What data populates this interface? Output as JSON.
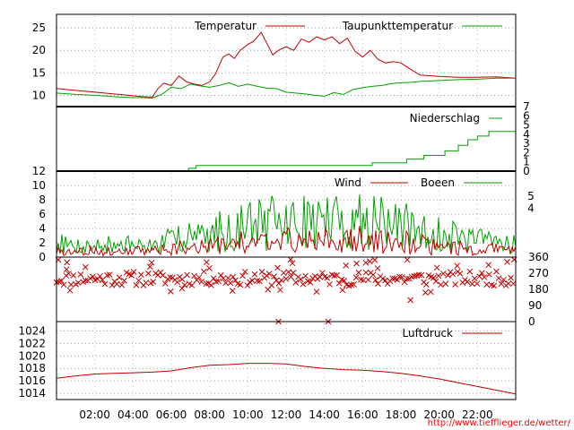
{
  "chart_data": [
    {
      "type": "line",
      "panel": "temperature",
      "x_range_hours": [
        0,
        24
      ],
      "ylim": [
        7.5,
        28
      ],
      "yticks": [
        10,
        15,
        20,
        25
      ],
      "legend_position": "top",
      "series": [
        {
          "name": "Temperatur",
          "color": "#c00000",
          "x": [
            0,
            1,
            2,
            3,
            4,
            4.5,
            5,
            5.3,
            5.6,
            6.0,
            6.4,
            6.8,
            7.2,
            7.6,
            8.0,
            8.3,
            8.7,
            9.0,
            9.3,
            9.6,
            10.0,
            10.3,
            10.7,
            11.0,
            11.3,
            11.6,
            12.0,
            12.4,
            12.8,
            13.2,
            13.6,
            14.0,
            14.4,
            14.8,
            15.2,
            15.6,
            16.0,
            16.4,
            16.8,
            17.2,
            17.6,
            18.0,
            18.5,
            19.0,
            20.0,
            21.0,
            22.0,
            23.0,
            24.0
          ],
          "y": [
            11.5,
            11.1,
            10.7,
            10.3,
            9.9,
            9.7,
            9.6,
            11.5,
            12.7,
            12.2,
            14.3,
            13.0,
            12.5,
            12.2,
            13.0,
            14.7,
            18.5,
            19.2,
            18.2,
            20.0,
            21.3,
            22.0,
            24.0,
            21.5,
            19.0,
            20.0,
            20.8,
            20.0,
            22.5,
            21.8,
            23.0,
            22.3,
            23.0,
            21.5,
            22.7,
            19.8,
            18.5,
            20.0,
            18.0,
            17.2,
            17.5,
            17.2,
            15.8,
            14.5,
            14.2,
            14.0,
            14.0,
            14.1,
            13.8
          ]
        },
        {
          "name": "Taupunkttemperatur",
          "color": "#00a000",
          "x": [
            0,
            1,
            2,
            3,
            4,
            4.5,
            5,
            5.5,
            6.0,
            6.5,
            7.0,
            7.5,
            8.0,
            8.5,
            9.0,
            9.5,
            10.0,
            10.5,
            11.0,
            11.5,
            12.0,
            12.5,
            13.0,
            13.5,
            14.0,
            14.5,
            15.0,
            15.5,
            16.0,
            16.5,
            17.0,
            17.5,
            18.0,
            18.5,
            19.0,
            20.0,
            21.0,
            22.0,
            23.0,
            24.0
          ],
          "y": [
            10.5,
            10.2,
            10.0,
            9.7,
            9.5,
            9.5,
            9.4,
            10.2,
            11.8,
            11.5,
            12.5,
            12.1,
            11.8,
            12.2,
            12.8,
            12.0,
            12.5,
            12.0,
            11.6,
            11.5,
            10.7,
            10.5,
            10.3,
            10.0,
            9.8,
            10.6,
            10.2,
            11.3,
            11.7,
            12.0,
            12.2,
            12.6,
            12.8,
            12.9,
            13.1,
            13.3,
            13.5,
            13.6,
            13.8,
            13.8
          ]
        }
      ]
    },
    {
      "type": "line",
      "panel": "precipitation",
      "x_range_hours": [
        0,
        24
      ],
      "ylim": [
        0,
        7
      ],
      "yticks": [
        0,
        1,
        2,
        3,
        4,
        5,
        6,
        7
      ],
      "y_axis_side": "right",
      "legend_position": "top",
      "series": [
        {
          "name": "Niederschlag",
          "color": "#00a000",
          "x": [
            0,
            6.9,
            6.9,
            7.3,
            7.3,
            16.5,
            16.5,
            18.3,
            18.3,
            19.2,
            19.2,
            20.3,
            20.3,
            21.0,
            21.0,
            21.5,
            21.5,
            22.0,
            22.0,
            22.6,
            22.6,
            24.0
          ],
          "y": [
            0,
            0,
            0.3,
            0.3,
            0.6,
            0.6,
            0.9,
            0.9,
            1.3,
            1.3,
            1.7,
            1.7,
            2.2,
            2.2,
            2.8,
            2.8,
            3.4,
            3.4,
            3.8,
            3.8,
            4.3,
            4.3
          ]
        }
      ]
    },
    {
      "type": "line",
      "panel": "wind",
      "x_range_hours": [
        0,
        24
      ],
      "ylim": [
        0,
        12
      ],
      "yticks": [
        0,
        2,
        4,
        6,
        8,
        10,
        12
      ],
      "right_labels": [
        "4",
        "5"
      ],
      "legend_position": "top",
      "series": [
        {
          "name": "Wind",
          "color": "#c00000",
          "envelope_x": [
            0,
            3,
            5,
            6,
            7,
            8,
            9,
            10,
            11,
            12,
            13,
            14,
            15,
            16,
            17,
            18,
            19,
            20,
            21,
            22,
            23,
            24
          ],
          "envelope_y": [
            1.1,
            1.0,
            1.0,
            1.4,
            1.7,
            1.9,
            2.2,
            2.6,
            3.0,
            3.1,
            3.3,
            3.2,
            3.0,
            3.0,
            2.9,
            2.6,
            2.2,
            1.8,
            1.6,
            1.5,
            1.4,
            1.4
          ]
        },
        {
          "name": "Boeen",
          "color": "#00a000",
          "envelope_x": [
            0,
            3,
            5,
            6,
            7,
            8,
            9,
            10,
            11,
            12,
            13,
            14,
            15,
            16,
            17,
            18,
            19,
            20,
            21,
            22,
            23,
            24
          ],
          "envelope_y": [
            2.2,
            2.0,
            2.1,
            2.8,
            3.3,
            4.2,
            4.6,
            5.2,
            5.8,
            6.2,
            6.5,
            6.8,
            6.3,
            6.0,
            5.8,
            5.4,
            4.6,
            3.8,
            3.3,
            3.0,
            2.9,
            2.8
          ]
        }
      ]
    },
    {
      "type": "scatter",
      "panel": "wind_direction",
      "x_range_hours": [
        0,
        24
      ],
      "ylim": [
        0,
        360
      ],
      "yticks": [
        0,
        90,
        180,
        270,
        360
      ],
      "y_axis_side": "right",
      "marker": "x",
      "color": "#c00000",
      "main_band_degrees": [
        200,
        280
      ],
      "outliers": [
        {
          "x": 0.1,
          "y": 345
        },
        {
          "x": 11.6,
          "y": 0
        },
        {
          "x": 14.2,
          "y": 0
        },
        {
          "x": 18.5,
          "y": 120
        }
      ]
    },
    {
      "type": "line",
      "panel": "pressure",
      "x_range_hours": [
        0,
        24
      ],
      "ylim": [
        1013,
        1025.5
      ],
      "yticks": [
        1014,
        1016,
        1018,
        1020,
        1022,
        1024
      ],
      "legend_position": "top",
      "series": [
        {
          "name": "Luftdruck",
          "color": "#c00000",
          "x": [
            0,
            1,
            2,
            3,
            4,
            5,
            6,
            7,
            8,
            9,
            10,
            11,
            12,
            13,
            14,
            15,
            16,
            17,
            18,
            19,
            20,
            21,
            22,
            23,
            24
          ],
          "y": [
            1016.4,
            1016.8,
            1017.1,
            1017.2,
            1017.3,
            1017.4,
            1017.6,
            1018.1,
            1018.5,
            1018.6,
            1018.8,
            1018.8,
            1018.7,
            1018.3,
            1018.0,
            1017.8,
            1017.7,
            1017.5,
            1017.2,
            1016.8,
            1016.3,
            1015.7,
            1015.1,
            1014.5,
            1013.9
          ]
        }
      ]
    }
  ],
  "x_axis": {
    "tick_labels": [
      "02:00",
      "04:00",
      "06:00",
      "08:00",
      "10:00",
      "12:00",
      "14:00",
      "16:00",
      "18:00",
      "20:00",
      "22:00"
    ]
  },
  "footer": {
    "url": "http://www.tiefflieger.de/wetter/"
  }
}
